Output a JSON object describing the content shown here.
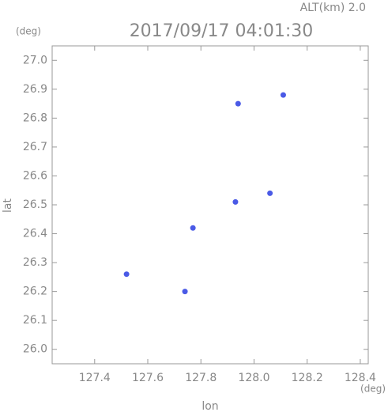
{
  "chart_data": {
    "type": "scatter",
    "title": "2017/09/17 04:01:30",
    "subtitle": "ALT(km) 2.0",
    "y_unit": "(deg)",
    "x_unit": "(deg)",
    "ylabel": "lat",
    "xlabel": "lon",
    "xlim": [
      127.24,
      128.43
    ],
    "ylim": [
      25.95,
      27.05
    ],
    "xticks": [
      127.4,
      127.6,
      127.8,
      {
        "value": 128.0,
        "label": "128.0"
      },
      128.2,
      128.4
    ],
    "yticks": [
      {
        "value": 26.0,
        "label": "26.0"
      },
      26.1,
      26.2,
      26.3,
      26.4,
      26.5,
      26.6,
      26.7,
      26.8,
      26.9,
      {
        "value": 27.0,
        "label": "27.0"
      }
    ],
    "series": [
      {
        "color": "#4a5ae6",
        "x": [
          127.94,
          128.11,
          128.06,
          127.93,
          127.77,
          127.52,
          127.74
        ],
        "values": [
          26.85,
          26.88,
          26.54,
          26.51,
          26.42,
          26.26,
          26.2
        ]
      }
    ]
  }
}
